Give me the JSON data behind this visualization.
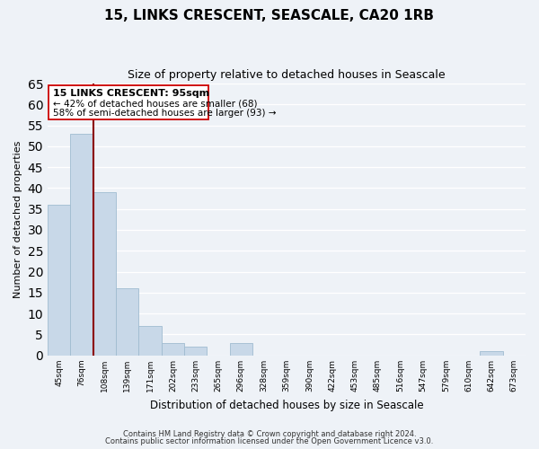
{
  "title": "15, LINKS CRESCENT, SEASCALE, CA20 1RB",
  "subtitle": "Size of property relative to detached houses in Seascale",
  "xlabel": "Distribution of detached houses by size in Seascale",
  "ylabel": "Number of detached properties",
  "bin_labels": [
    "45sqm",
    "76sqm",
    "108sqm",
    "139sqm",
    "171sqm",
    "202sqm",
    "233sqm",
    "265sqm",
    "296sqm",
    "328sqm",
    "359sqm",
    "390sqm",
    "422sqm",
    "453sqm",
    "485sqm",
    "516sqm",
    "547sqm",
    "579sqm",
    "610sqm",
    "642sqm",
    "673sqm"
  ],
  "bar_values": [
    36,
    53,
    39,
    16,
    7,
    3,
    2,
    0,
    3,
    0,
    0,
    0,
    0,
    0,
    0,
    0,
    0,
    0,
    0,
    1,
    0
  ],
  "bar_color": "#c8d8e8",
  "bar_edge_color": "#a0bcd0",
  "property_line_color": "#8b0000",
  "ylim": [
    0,
    65
  ],
  "yticks": [
    0,
    5,
    10,
    15,
    20,
    25,
    30,
    35,
    40,
    45,
    50,
    55,
    60,
    65
  ],
  "annotation_title": "15 LINKS CRESCENT: 95sqm",
  "annotation_line1": "← 42% of detached houses are smaller (68)",
  "annotation_line2": "58% of semi-detached houses are larger (93) →",
  "footer_line1": "Contains HM Land Registry data © Crown copyright and database right 2024.",
  "footer_line2": "Contains public sector information licensed under the Open Government Licence v3.0.",
  "background_color": "#eef2f7",
  "grid_color": "#ffffff",
  "ann_box_color": "#cc0000",
  "property_line_xindex": 1.5
}
